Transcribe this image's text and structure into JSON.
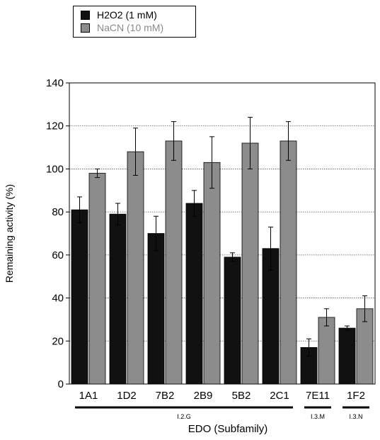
{
  "chart_data": {
    "type": "bar",
    "title": "",
    "xlabel": "EDO (Subfamily)",
    "ylabel": "Remaining activity (%)",
    "ylim": [
      0,
      140
    ],
    "yticks": [
      0,
      20,
      40,
      60,
      80,
      100,
      120,
      140
    ],
    "grid": "horizontal dotted",
    "legend_position": "top-left",
    "categories": [
      "1A1",
      "1D2",
      "7B2",
      "2B9",
      "5B2",
      "2C1",
      "7E11",
      "1F2"
    ],
    "series": [
      {
        "name": "H2O2 (1 mM)",
        "color": "#111111",
        "text_color": "#000000",
        "values": [
          81,
          79,
          70,
          84,
          59,
          63,
          17,
          26
        ],
        "errors": [
          6,
          5,
          8,
          6,
          2,
          10,
          4,
          1
        ]
      },
      {
        "name": "NaCN (10 mM)",
        "color": "#8c8c8c",
        "text_color": "#8a8a8a",
        "values": [
          98,
          108,
          113,
          103,
          112,
          113,
          31,
          35
        ],
        "errors": [
          2,
          11,
          9,
          12,
          12,
          9,
          4,
          6
        ]
      }
    ],
    "subfamilies": [
      {
        "label": "I.2.G",
        "from": "1A1",
        "to": "2C1"
      },
      {
        "label": "I.3.M",
        "from": "7E11",
        "to": "7E11"
      },
      {
        "label": "I.3.N",
        "from": "1F2",
        "to": "1F2"
      }
    ]
  }
}
